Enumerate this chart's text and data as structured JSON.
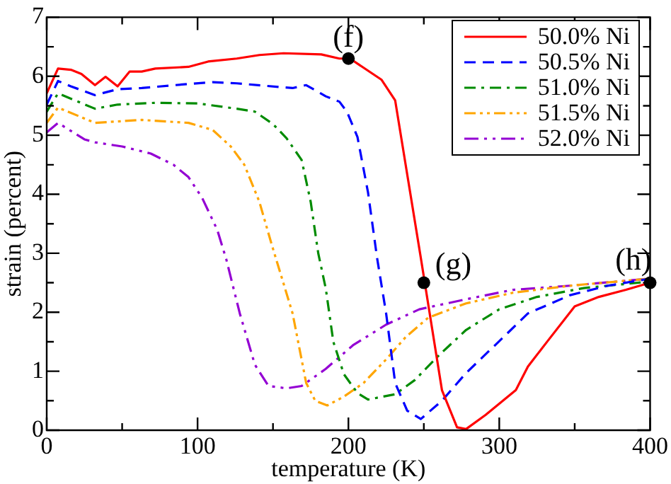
{
  "chart_data": {
    "type": "line",
    "xlabel": "temperature (K)",
    "ylabel": "strain (percent)",
    "xlim": [
      0,
      400
    ],
    "xticks": [
      0,
      {
        "value": 50,
        "label": null
      },
      100,
      {
        "value": 150,
        "label": null
      },
      200,
      {
        "value": 250,
        "label": null
      },
      300,
      {
        "value": 350,
        "label": null
      },
      400
    ],
    "ylim": [
      0,
      7
    ],
    "yticks": [
      0,
      {
        "value": 0.5,
        "label": null
      },
      1,
      {
        "value": 1.5,
        "label": null
      },
      2,
      {
        "value": 2.5,
        "label": null
      },
      3,
      {
        "value": 3.5,
        "label": null
      },
      4,
      {
        "value": 4.5,
        "label": null
      },
      5,
      {
        "value": 5.5,
        "label": null
      },
      6,
      {
        "value": 6.5,
        "label": null
      },
      7
    ],
    "grid": false,
    "legend": "top right",
    "marker": "none",
    "series": [
      {
        "name": "50.0% Ni",
        "color": "#ff0000",
        "line_style": "solid",
        "x": [
          0,
          7.5,
          16,
          23,
          32,
          39,
          47,
          55,
          63,
          72,
          94,
          107,
          126,
          141,
          157,
          182,
          194,
          201,
          222,
          231,
          248,
          262,
          272,
          278,
          291,
          311,
          319,
          332,
          350,
          366,
          384,
          400
        ],
        "values": [
          5.71,
          6.13,
          6.11,
          6.04,
          5.85,
          5.99,
          5.83,
          6.08,
          6.08,
          6.13,
          6.16,
          6.25,
          6.3,
          6.36,
          6.39,
          6.37,
          6.3,
          6.3,
          5.94,
          5.59,
          2.92,
          0.68,
          0.05,
          0.02,
          0.26,
          0.68,
          1.08,
          1.51,
          2.1,
          2.26,
          2.38,
          2.5
        ]
      },
      {
        "name": "50.5% Ni",
        "color": "#0000ff",
        "line_style": "dashed",
        "x": [
          0,
          7.5,
          16,
          32,
          47,
          63,
          94,
          110,
          126,
          144,
          163,
          172,
          185,
          194,
          199,
          206,
          213,
          219,
          225,
          231,
          239,
          248,
          262,
          278,
          300,
          319,
          347,
          372,
          400
        ],
        "values": [
          5.52,
          5.92,
          5.83,
          5.68,
          5.78,
          5.8,
          5.87,
          5.9,
          5.88,
          5.84,
          5.8,
          5.85,
          5.66,
          5.57,
          5.4,
          4.97,
          4.03,
          2.92,
          1.98,
          0.8,
          0.33,
          0.19,
          0.5,
          0.97,
          1.51,
          1.98,
          2.29,
          2.45,
          2.57
        ]
      },
      {
        "name": "51.0% Ni",
        "color": "#008b00",
        "line_style": "dashed",
        "x": [
          0,
          7.5,
          32,
          47,
          72,
          100,
          126,
          138,
          150,
          159,
          169,
          175,
          180,
          185,
          190,
          197,
          206,
          213,
          231,
          244,
          260,
          278,
          300,
          325,
          356,
          400
        ],
        "values": [
          5.4,
          5.71,
          5.45,
          5.52,
          5.55,
          5.54,
          5.45,
          5.4,
          5.19,
          4.95,
          4.58,
          3.87,
          3.0,
          2.4,
          1.5,
          0.95,
          0.63,
          0.52,
          0.61,
          0.85,
          1.27,
          1.7,
          2.05,
          2.26,
          2.41,
          2.52
        ]
      },
      {
        "name": "51.5% Ni",
        "color": "#ffa500",
        "line_style": "dashed",
        "x": [
          0,
          7.5,
          32,
          63,
          94,
          110,
          122,
          131,
          141,
          149,
          163,
          172,
          178,
          186,
          197,
          210,
          225,
          238,
          253,
          278,
          309,
          347,
          400
        ],
        "values": [
          5.21,
          5.47,
          5.21,
          5.26,
          5.21,
          5.09,
          4.81,
          4.5,
          3.87,
          3.16,
          1.98,
          0.8,
          0.5,
          0.42,
          0.57,
          0.8,
          1.2,
          1.58,
          1.91,
          2.15,
          2.33,
          2.45,
          2.57
        ]
      },
      {
        "name": "52.0% Ni",
        "color": "#9400d3",
        "line_style": "dashed",
        "x": [
          0,
          7.5,
          25,
          32,
          50,
          69,
          84,
          94,
          103,
          113,
          119,
          128,
          138,
          147,
          159,
          169,
          185,
          203,
          225,
          247,
          278,
          309,
          347,
          400
        ],
        "values": [
          5.05,
          5.21,
          4.93,
          4.88,
          4.81,
          4.69,
          4.5,
          4.29,
          3.94,
          3.4,
          2.9,
          1.98,
          1.11,
          0.75,
          0.71,
          0.75,
          1.04,
          1.44,
          1.79,
          2.05,
          2.22,
          2.38,
          2.45,
          2.57
        ]
      }
    ],
    "annotations": [
      {
        "text": "(f)",
        "x": 200,
        "y": 6.3
      },
      {
        "text": "(g)",
        "x": 250,
        "y": 2.5
      },
      {
        "text": "(h)",
        "x": 400,
        "y": 2.5
      }
    ]
  }
}
